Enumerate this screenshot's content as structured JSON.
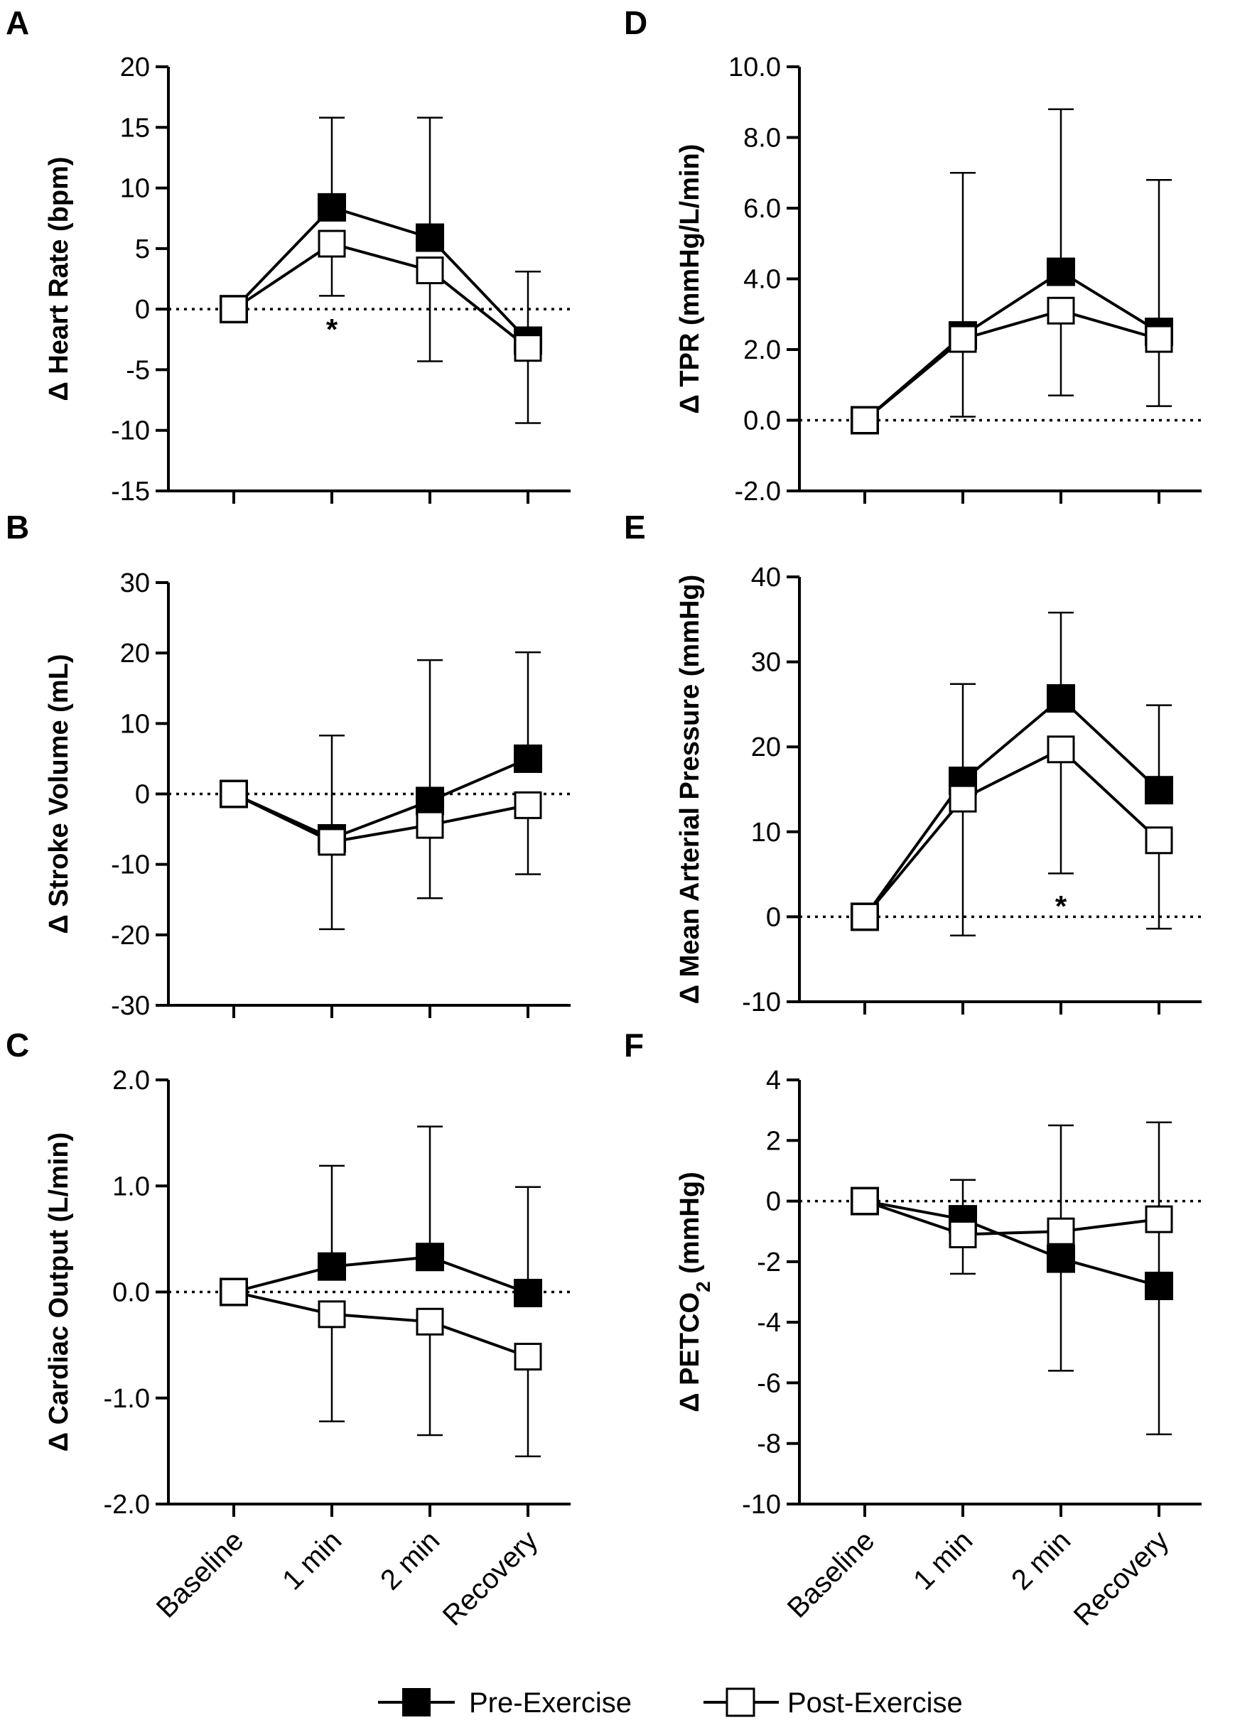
{
  "legend": {
    "pre_label": "Pre-Exercise",
    "post_label": "Post-Exercise"
  },
  "x_categories": [
    "Baseline",
    "1 min",
    "2 min",
    "Recovery"
  ],
  "chart_data": [
    {
      "panel": "A",
      "type": "line",
      "ylabel": "Δ Heart Rate (bpm)",
      "ylim": [
        -15,
        20
      ],
      "yticks": [
        {
          "v": 20,
          "label": "20"
        },
        {
          "v": 15,
          "label": "15"
        },
        {
          "v": 10,
          "label": "10"
        },
        {
          "v": 5,
          "label": "5"
        },
        {
          "v": 0,
          "label": "0"
        },
        {
          "v": -5,
          "label": "-5"
        },
        {
          "v": -10,
          "label": "-10"
        },
        {
          "v": -15,
          "label": "-15"
        }
      ],
      "categories": [
        "Baseline",
        "1 min",
        "2 min",
        "Recovery"
      ],
      "series": [
        {
          "name": "Pre-Exercise",
          "values": [
            0,
            8.4,
            5.9,
            -2.6
          ],
          "err_upper": [
            null,
            15.8,
            15.8,
            3.1
          ],
          "err_lower": [
            null,
            null,
            null,
            null
          ]
        },
        {
          "name": "Post-Exercise",
          "values": [
            0,
            5.4,
            3.2,
            -3.2
          ],
          "err_upper": [
            null,
            null,
            null,
            null
          ],
          "err_lower": [
            null,
            1.1,
            -4.3,
            -9.4
          ]
        }
      ],
      "annotations": [
        {
          "x": "1 min",
          "y": -1.7,
          "text": "*"
        }
      ]
    },
    {
      "panel": "B",
      "type": "line",
      "ylabel": "Δ Stroke Volume (mL)",
      "ylim": [
        -30,
        30
      ],
      "yticks": [
        {
          "v": 30,
          "label": "30"
        },
        {
          "v": 20,
          "label": "20"
        },
        {
          "v": 10,
          "label": "10"
        },
        {
          "v": 0,
          "label": "0"
        },
        {
          "v": -10,
          "label": "-10"
        },
        {
          "v": -20,
          "label": "-20"
        },
        {
          "v": -30,
          "label": "-30"
        }
      ],
      "categories": [
        "Baseline",
        "1 min",
        "2 min",
        "Recovery"
      ],
      "series": [
        {
          "name": "Pre-Exercise",
          "values": [
            0,
            -6.3,
            -1.0,
            5.0
          ],
          "err_upper": [
            null,
            8.3,
            19.0,
            20.1
          ],
          "err_lower": [
            null,
            null,
            null,
            null
          ]
        },
        {
          "name": "Post-Exercise",
          "values": [
            0,
            -6.8,
            -4.4,
            -1.6
          ],
          "err_upper": [
            null,
            null,
            null,
            null
          ],
          "err_lower": [
            null,
            -19.2,
            -14.8,
            -11.4
          ]
        }
      ],
      "annotations": []
    },
    {
      "panel": "C",
      "type": "line",
      "ylabel": "Δ Cardiac Output (L/min)",
      "ylim": [
        -2.0,
        2.0
      ],
      "yticks": [
        {
          "v": 2,
          "label": "2.0"
        },
        {
          "v": 1,
          "label": "1.0"
        },
        {
          "v": 0,
          "label": "0.0"
        },
        {
          "v": -1,
          "label": "-1.0"
        },
        {
          "v": -2,
          "label": "-2.0"
        }
      ],
      "categories": [
        "Baseline",
        "1 min",
        "2 min",
        "Recovery"
      ],
      "series": [
        {
          "name": "Pre-Exercise",
          "values": [
            0,
            0.24,
            0.33,
            -0.01
          ],
          "err_upper": [
            null,
            1.19,
            1.56,
            0.99
          ],
          "err_lower": [
            null,
            null,
            null,
            null
          ]
        },
        {
          "name": "Post-Exercise",
          "values": [
            0,
            -0.21,
            -0.28,
            -0.61
          ],
          "err_upper": [
            null,
            null,
            null,
            null
          ],
          "err_lower": [
            null,
            -1.22,
            -1.35,
            -1.55
          ]
        }
      ],
      "annotations": []
    },
    {
      "panel": "D",
      "type": "line",
      "ylabel": "Δ TPR (mmHg/L/min)",
      "ylim": [
        -2.0,
        10.0
      ],
      "yticks": [
        {
          "v": 10,
          "label": "10.0"
        },
        {
          "v": 8,
          "label": "8.0"
        },
        {
          "v": 6,
          "label": "6.0"
        },
        {
          "v": 4,
          "label": "4.0"
        },
        {
          "v": 2,
          "label": "2.0"
        },
        {
          "v": 0,
          "label": "0.0"
        },
        {
          "v": -2,
          "label": "-2.0"
        }
      ],
      "categories": [
        "Baseline",
        "1 min",
        "2 min",
        "Recovery"
      ],
      "series": [
        {
          "name": "Pre-Exercise",
          "values": [
            0,
            2.4,
            4.2,
            2.5
          ],
          "err_upper": [
            null,
            7.0,
            8.8,
            6.8
          ],
          "err_lower": [
            null,
            null,
            null,
            null
          ]
        },
        {
          "name": "Post-Exercise",
          "values": [
            0,
            2.3,
            3.1,
            2.3
          ],
          "err_upper": [
            null,
            null,
            null,
            null
          ],
          "err_lower": [
            null,
            0.1,
            0.7,
            0.4
          ]
        }
      ],
      "annotations": []
    },
    {
      "panel": "E",
      "type": "line",
      "ylabel": "Δ Mean Arterial Pressure (mmHg)",
      "ylim": [
        -10,
        40
      ],
      "yticks": [
        {
          "v": 40,
          "label": "40"
        },
        {
          "v": 30,
          "label": "30"
        },
        {
          "v": 20,
          "label": "20"
        },
        {
          "v": 10,
          "label": "10"
        },
        {
          "v": 0,
          "label": "0"
        },
        {
          "v": -10,
          "label": "-10"
        }
      ],
      "categories": [
        "Baseline",
        "1 min",
        "2 min",
        "Recovery"
      ],
      "series": [
        {
          "name": "Pre-Exercise",
          "values": [
            0,
            16.0,
            25.7,
            14.9
          ],
          "err_upper": [
            null,
            27.4,
            35.8,
            24.9
          ],
          "err_lower": [
            null,
            null,
            null,
            null
          ]
        },
        {
          "name": "Post-Exercise",
          "values": [
            0,
            13.9,
            19.7,
            9.0
          ],
          "err_upper": [
            null,
            null,
            null,
            null
          ],
          "err_lower": [
            null,
            -2.2,
            5.1,
            -1.4
          ]
        }
      ],
      "annotations": [
        {
          "x": "2 min",
          "y": 1.2,
          "text": "*"
        }
      ]
    },
    {
      "panel": "F",
      "type": "line",
      "ylabel": "Δ PETCO",
      "ylabel_sub": "2",
      "ylabel_unit": "(mmHg)",
      "ylim": [
        -10,
        4
      ],
      "yticks": [
        {
          "v": 4,
          "label": "4"
        },
        {
          "v": 2,
          "label": "2"
        },
        {
          "v": 0,
          "label": "0"
        },
        {
          "v": -2,
          "label": "-2"
        },
        {
          "v": -4,
          "label": "-4"
        },
        {
          "v": -6,
          "label": "-6"
        },
        {
          "v": -8,
          "label": "-8"
        },
        {
          "v": -10,
          "label": "-10"
        }
      ],
      "categories": [
        "Baseline",
        "1 min",
        "2 min",
        "Recovery"
      ],
      "series": [
        {
          "name": "Pre-Exercise",
          "values": [
            0,
            -0.6,
            -1.9,
            -2.8
          ],
          "err_upper": [
            null,
            0.7,
            2.5,
            2.6
          ],
          "err_lower": [
            null,
            null,
            -5.6,
            -7.7
          ]
        },
        {
          "name": "Post-Exercise",
          "values": [
            0,
            -1.1,
            -1.0,
            -0.6
          ],
          "err_upper": [
            null,
            null,
            null,
            null
          ],
          "err_lower": [
            null,
            -2.4,
            null,
            null
          ]
        }
      ],
      "annotations": []
    }
  ]
}
